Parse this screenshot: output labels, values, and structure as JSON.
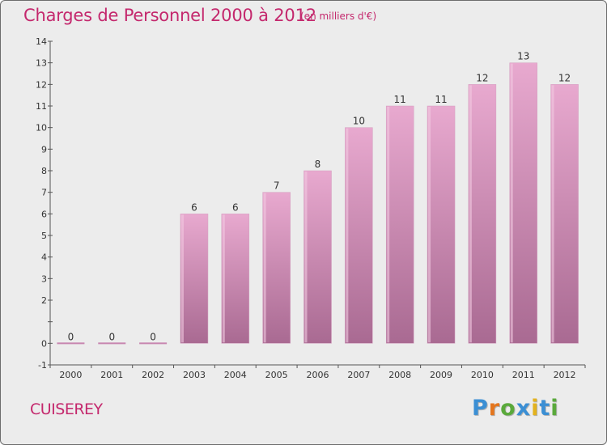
{
  "header": {
    "title": "Charges de Personnel 2000 à 2012",
    "subtitle": "(en milliers d'€)"
  },
  "footer": {
    "commune": "CUISEREY",
    "logo_letters": [
      {
        "char": "P",
        "color": "#3b8fd4"
      },
      {
        "char": "r",
        "color": "#e4761e"
      },
      {
        "char": "o",
        "color": "#5aa93b"
      },
      {
        "char": "x",
        "color": "#3b8fd4"
      },
      {
        "char": "i",
        "color": "#e3b21e"
      },
      {
        "char": "t",
        "color": "#3b8fd4"
      },
      {
        "char": "i",
        "color": "#5aa93b"
      }
    ]
  },
  "colors": {
    "text": "#c4286d",
    "bar_top": "#e8a9cf",
    "bar_bottom": "#a96a92",
    "bar_zero": "#c887b0",
    "background": "#ececec"
  },
  "chart_data": {
    "type": "bar",
    "categories": [
      "2000",
      "2001",
      "2002",
      "2003",
      "2004",
      "2005",
      "2006",
      "2007",
      "2008",
      "2009",
      "2010",
      "2011",
      "2012"
    ],
    "values": [
      0,
      0,
      0,
      6,
      6,
      7,
      8,
      10,
      11,
      11,
      12,
      13,
      12
    ],
    "data_labels": [
      "0",
      "0",
      "0",
      "6",
      "6",
      "7",
      "8",
      "10",
      "11",
      "11",
      "12",
      "13",
      "12"
    ],
    "ylim": [
      -1,
      14
    ],
    "yticks": [
      -1,
      0,
      1,
      2,
      3,
      4,
      5,
      6,
      7,
      8,
      9,
      10,
      11,
      12,
      13,
      14
    ],
    "ytick_labels": [
      "-1",
      "0",
      "",
      "2",
      "3",
      "4",
      "5",
      "6",
      "7",
      "8",
      "9",
      "10",
      "11",
      "12",
      "13",
      "14"
    ],
    "grid": false,
    "xlabel": "",
    "ylabel": ""
  }
}
